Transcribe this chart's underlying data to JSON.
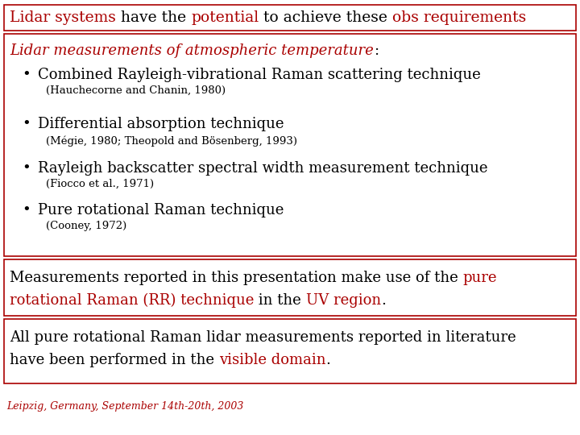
{
  "bg_color": "#ffffff",
  "border_color": "#aa0000",
  "title_parts": [
    {
      "text": "Lidar systems",
      "color": "#aa0000"
    },
    {
      "text": " have the ",
      "color": "#000000"
    },
    {
      "text": "potential",
      "color": "#aa0000"
    },
    {
      "text": " to achieve these ",
      "color": "#000000"
    },
    {
      "text": "obs requirements",
      "color": "#aa0000"
    }
  ],
  "title_fontsize": 13.5,
  "sec2_header_parts": [
    {
      "text": "Lidar measurements of atmospheric temperature",
      "color": "#aa0000",
      "italic": true
    },
    {
      "text": ":",
      "color": "#000000",
      "italic": false
    }
  ],
  "sec2_header_fontsize": 13,
  "bullets": [
    {
      "main": "Combined Rayleigh-vibrational Raman scattering technique",
      "ref": "(Hauchecorne and Chanin, 1980)"
    },
    {
      "main": "Differential absorption technique",
      "ref": "(Mégie, 1980; Theopold and Bösenberg, 1993)"
    },
    {
      "main": "Rayleigh backscatter spectral width measurement technique",
      "ref": "(Fiocco et al., 1971)"
    },
    {
      "main": "Pure rotational Raman technique",
      "ref": "(Cooney, 1972)"
    }
  ],
  "bullet_fontsize": 13,
  "ref_fontsize": 9.5,
  "sec3_line1_parts": [
    {
      "text": "Measurements reported in this presentation make use of the ",
      "color": "#000000"
    },
    {
      "text": "pure",
      "color": "#aa0000"
    }
  ],
  "sec3_line2_parts": [
    {
      "text": "rotational Raman (RR) technique",
      "color": "#aa0000"
    },
    {
      "text": " in the ",
      "color": "#000000"
    },
    {
      "text": "UV region",
      "color": "#aa0000"
    },
    {
      "text": ".",
      "color": "#000000"
    }
  ],
  "sec3_fontsize": 13,
  "sec4_line1": "All pure rotational Raman lidar measurements reported in literature",
  "sec4_line2_parts": [
    {
      "text": "have been performed in the ",
      "color": "#000000"
    },
    {
      "text": "visible domain",
      "color": "#aa0000"
    },
    {
      "text": ".",
      "color": "#000000"
    }
  ],
  "sec4_fontsize": 13,
  "footer": "Leipzig, Germany, September 14th-20th, 2003",
  "footer_fontsize": 9,
  "footer_color": "#aa0000"
}
